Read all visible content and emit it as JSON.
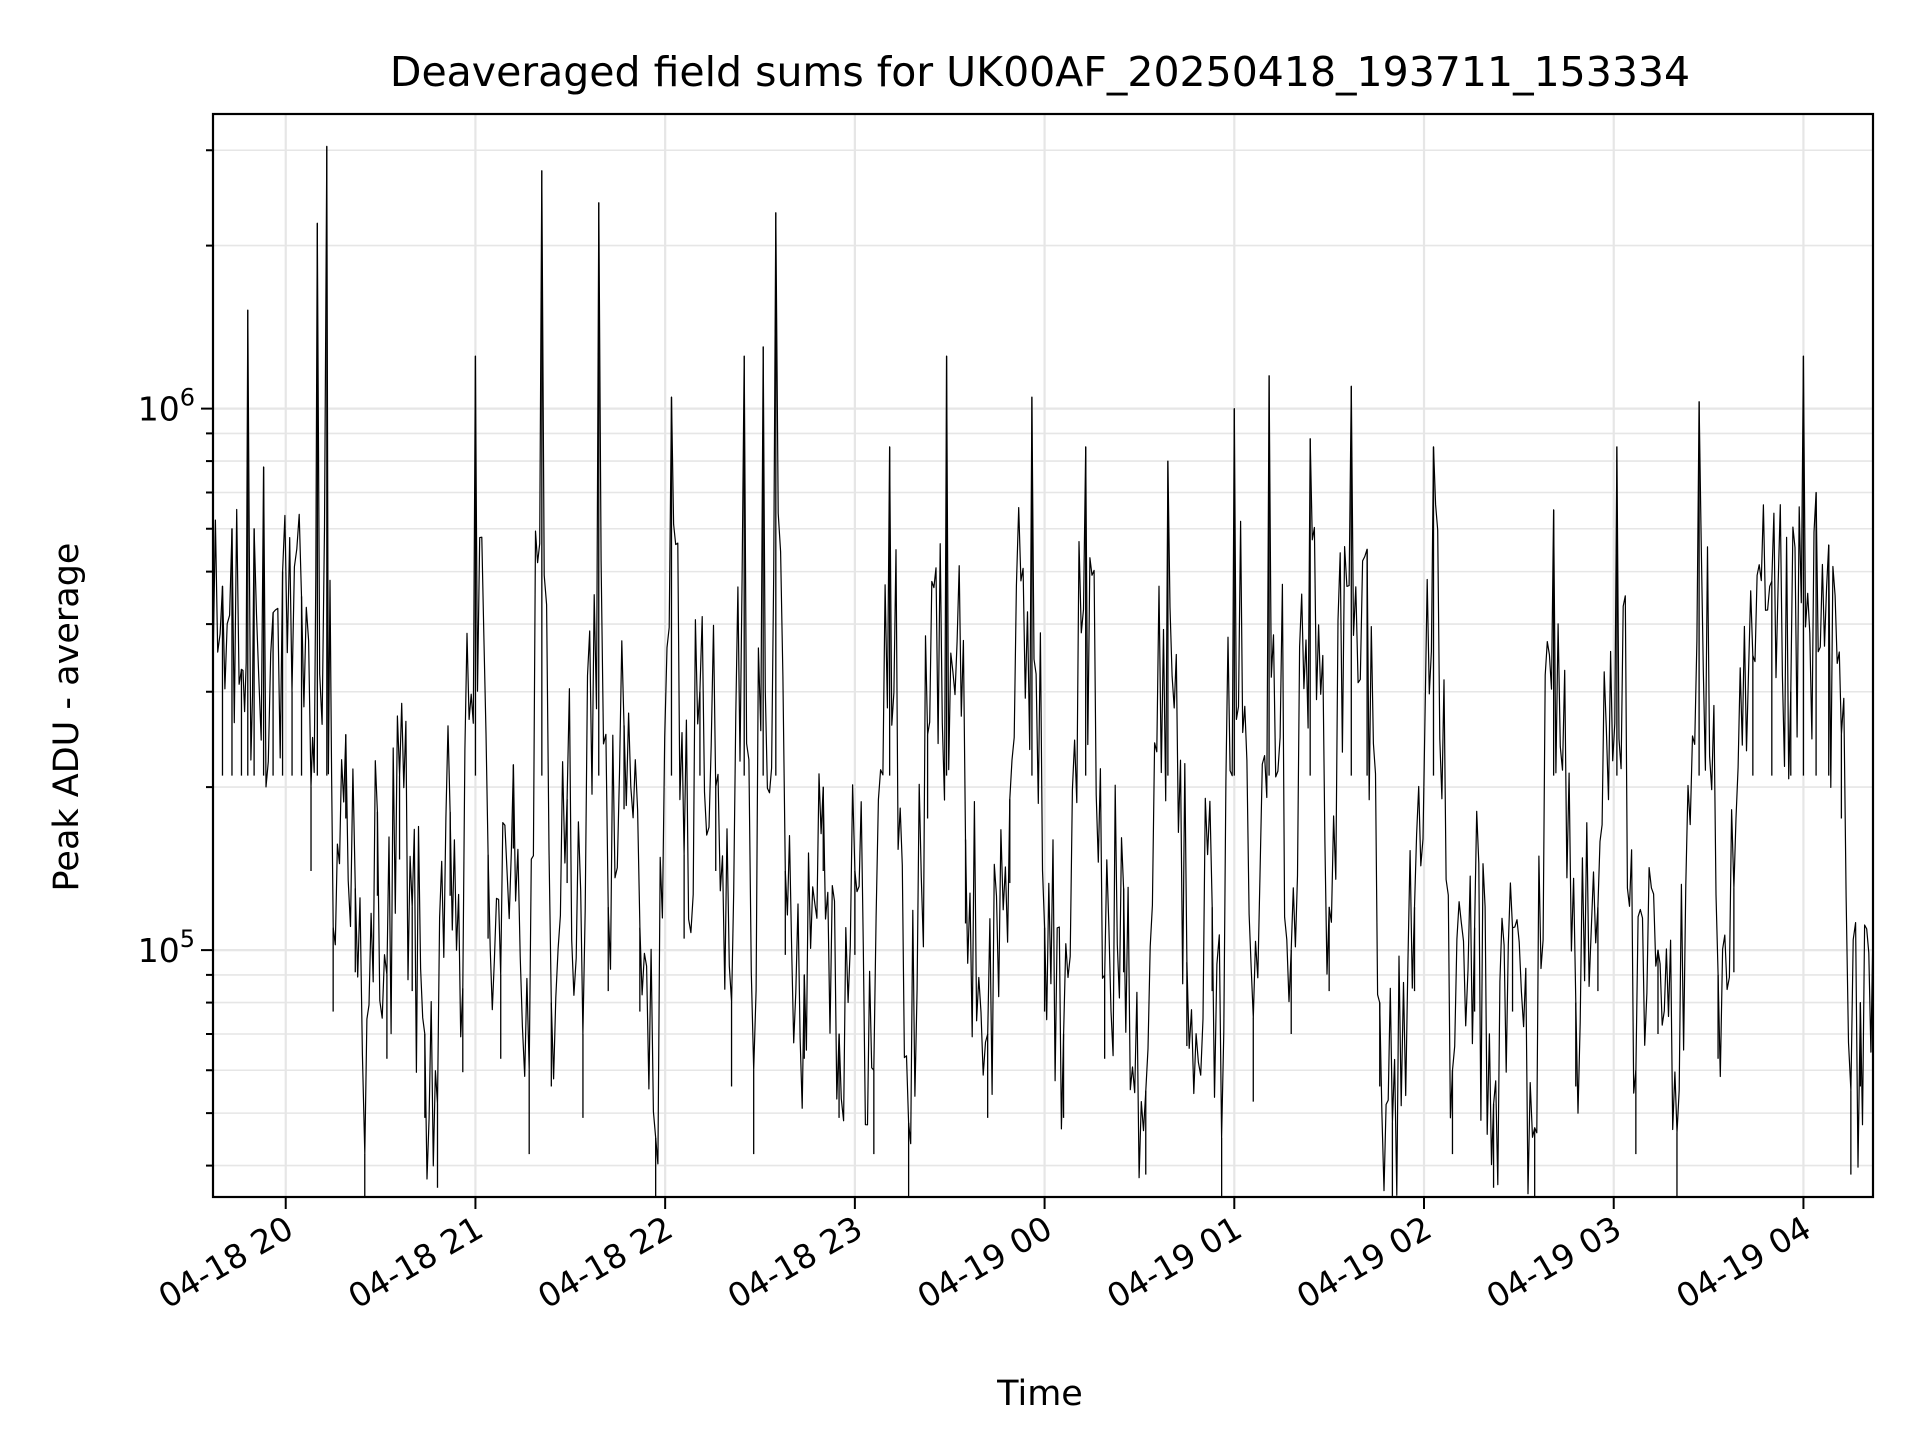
{
  "chart_data": {
    "type": "line",
    "title": "Deaveraged field sums for UK00AF_20250418_193711_153334",
    "xlabel": "Time",
    "ylabel": "Peak ADU - average",
    "yscale": "log",
    "xlim": [
      "2025-04-18 19:37",
      "2025-04-19 04:22"
    ],
    "ylim": [
      35000,
      3500000
    ],
    "x_ticks": [
      "04-18 20",
      "04-18 21",
      "04-18 22",
      "04-18 23",
      "04-19 00",
      "04-19 01",
      "04-19 02",
      "04-19 03",
      "04-19 04"
    ],
    "y_ticks": [
      {
        "base": "10",
        "exp": "6",
        "value": 1000000
      },
      {
        "base": "10",
        "exp": "5",
        "value": 100000
      }
    ],
    "grid": true,
    "line_color": "#000000",
    "series": [
      {
        "points": [
          [
            "2025-04-18 19:37",
            330000
          ],
          [
            "2025-04-18 19:40",
            470000
          ],
          [
            "2025-04-18 19:43",
            600000
          ],
          [
            "2025-04-18 19:46",
            330000
          ],
          [
            "2025-04-18 19:48",
            1520000
          ],
          [
            "2025-04-18 19:50",
            600000
          ],
          [
            "2025-04-18 19:53",
            780000
          ],
          [
            "2025-04-18 19:56",
            420000
          ],
          [
            "2025-04-18 19:59",
            500000
          ],
          [
            "2025-04-18 20:02",
            300000
          ],
          [
            "2025-04-18 20:05",
            450000
          ],
          [
            "2025-04-18 20:08",
            200000
          ],
          [
            "2025-04-18 20:10",
            2200000
          ],
          [
            "2025-04-18 20:13",
            3050000
          ],
          [
            "2025-04-18 20:15",
            110000
          ],
          [
            "2025-04-18 20:19",
            250000
          ],
          [
            "2025-04-18 20:22",
            130000
          ],
          [
            "2025-04-18 20:25",
            42000
          ],
          [
            "2025-04-18 20:29",
            180000
          ],
          [
            "2025-04-18 20:32",
            90000
          ],
          [
            "2025-04-18 20:36",
            210000
          ],
          [
            "2025-04-18 20:40",
            120000
          ],
          [
            "2025-04-18 20:44",
            70000
          ],
          [
            "2025-04-18 20:48",
            52000
          ],
          [
            "2025-04-18 20:52",
            180000
          ],
          [
            "2025-04-18 20:56",
            85000
          ],
          [
            "2025-04-18 21:00",
            1250000
          ],
          [
            "2025-04-18 21:04",
            150000
          ],
          [
            "2025-04-18 21:08",
            90000
          ],
          [
            "2025-04-18 21:12",
            220000
          ],
          [
            "2025-04-18 21:17",
            60000
          ],
          [
            "2025-04-18 21:21",
            2750000
          ],
          [
            "2025-04-18 21:24",
            80000
          ],
          [
            "2025-04-18 21:29",
            190000
          ],
          [
            "2025-04-18 21:34",
            70000
          ],
          [
            "2025-04-18 21:39",
            2400000
          ],
          [
            "2025-04-18 21:42",
            120000
          ],
          [
            "2025-04-18 21:47",
            260000
          ],
          [
            "2025-04-18 21:52",
            110000
          ],
          [
            "2025-04-18 21:57",
            45000
          ],
          [
            "2025-04-18 22:02",
            1050000
          ],
          [
            "2025-04-18 22:06",
            150000
          ],
          [
            "2025-04-18 22:11",
            300000
          ],
          [
            "2025-04-18 22:16",
            200000
          ],
          [
            "2025-04-18 22:21",
            80000
          ],
          [
            "2025-04-18 22:25",
            1250000
          ],
          [
            "2025-04-18 22:28",
            60000
          ],
          [
            "2025-04-18 22:31",
            1300000
          ],
          [
            "2025-04-18 22:35",
            2300000
          ],
          [
            "2025-04-18 22:38",
            140000
          ],
          [
            "2025-04-18 22:44",
            90000
          ],
          [
            "2025-04-18 22:50",
            200000
          ],
          [
            "2025-04-18 22:55",
            70000
          ],
          [
            "2025-04-18 23:00",
            140000
          ],
          [
            "2025-04-18 23:06",
            60000
          ],
          [
            "2025-04-18 23:11",
            850000
          ],
          [
            "2025-04-18 23:17",
            48000
          ],
          [
            "2025-04-18 23:23",
            250000
          ],
          [
            "2025-04-18 23:29",
            1250000
          ],
          [
            "2025-04-18 23:35",
            160000
          ],
          [
            "2025-04-18 23:42",
            70000
          ],
          [
            "2025-04-18 23:49",
            190000
          ],
          [
            "2025-04-18 23:56",
            1050000
          ],
          [
            "2025-04-19 00:00",
            110000
          ],
          [
            "2025-04-19 00:06",
            70000
          ],
          [
            "2025-04-19 00:13",
            850000
          ],
          [
            "2025-04-19 00:19",
            90000
          ],
          [
            "2025-04-19 00:25",
            130000
          ],
          [
            "2025-04-19 00:32",
            55000
          ],
          [
            "2025-04-19 00:39",
            800000
          ],
          [
            "2025-04-19 00:45",
            95000
          ],
          [
            "2025-04-19 00:53",
            120000
          ],
          [
            "2025-04-19 00:56",
            45000
          ],
          [
            "2025-04-19 01:00",
            1000000
          ],
          [
            "2025-04-19 01:06",
            75000
          ],
          [
            "2025-04-19 01:11",
            1150000
          ],
          [
            "2025-04-19 01:18",
            100000
          ],
          [
            "2025-04-19 01:24",
            880000
          ],
          [
            "2025-04-19 01:30",
            120000
          ],
          [
            "2025-04-19 01:37",
            1100000
          ],
          [
            "2025-04-19 01:42",
            550000
          ],
          [
            "2025-04-19 01:46",
            80000
          ],
          [
            "2025-04-19 01:50",
            48000
          ],
          [
            "2025-04-19 01:57",
            120000
          ],
          [
            "2025-04-19 02:03",
            850000
          ],
          [
            "2025-04-19 02:09",
            60000
          ],
          [
            "2025-04-19 02:16",
            110000
          ],
          [
            "2025-04-19 02:22",
            52000
          ],
          [
            "2025-04-19 02:28",
            110000
          ],
          [
            "2025-04-19 02:35",
            47000
          ],
          [
            "2025-04-19 02:41",
            650000
          ],
          [
            "2025-04-19 02:48",
            80000
          ],
          [
            "2025-04-19 02:55",
            120000
          ],
          [
            "2025-04-19 03:01",
            850000
          ],
          [
            "2025-04-19 03:07",
            60000
          ],
          [
            "2025-04-19 03:14",
            100000
          ],
          [
            "2025-04-19 03:20",
            46000
          ],
          [
            "2025-04-19 03:27",
            1030000
          ],
          [
            "2025-04-19 03:33",
            90000
          ],
          [
            "2025-04-19 03:38",
            130000
          ],
          [
            "2025-04-19 03:44",
            350000
          ],
          [
            "2025-04-19 03:50",
            480000
          ],
          [
            "2025-04-19 03:56",
            300000
          ],
          [
            "2025-04-19 04:00",
            1250000
          ],
          [
            "2025-04-19 04:04",
            700000
          ],
          [
            "2025-04-19 04:08",
            560000
          ],
          [
            "2025-04-19 04:12",
            250000
          ],
          [
            "2025-04-19 04:15",
            55000
          ],
          [
            "2025-04-19 04:18",
            80000
          ],
          [
            "2025-04-19 04:22",
            110000
          ]
        ]
      }
    ]
  }
}
